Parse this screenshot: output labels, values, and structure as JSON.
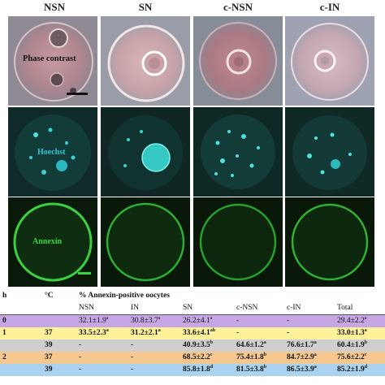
{
  "figure": {
    "columns": [
      "NSN",
      "SN",
      "c-NSN",
      "c-IN"
    ],
    "row_labels": {
      "phase": "Phase contrast",
      "hoechst": "Hoechst",
      "annexin": "Annexin"
    },
    "colors": {
      "phase_bg": "#8f8a93",
      "hoechst_bg": "#0f2a28",
      "hoechst_label": "#2fc4d8",
      "annexin_bg": "#0a1a0a",
      "annexin_label": "#3ad640"
    }
  },
  "table": {
    "header": {
      "h": "h",
      "temp": "°C",
      "group": "% Annexin-positive oocytes",
      "cols": [
        "NSN",
        "IN",
        "SN",
        "c-NSN",
        "c-IN",
        "Total"
      ]
    },
    "rows": [
      {
        "h": "0",
        "temp": "",
        "color": "purple",
        "cells": [
          {
            "v": "32.1±1.9",
            "s": "a"
          },
          {
            "v": "30.8±3.7",
            "s": "a"
          },
          {
            "v": "26.2±4.1",
            "s": "a"
          },
          {
            "v": "-",
            "s": ""
          },
          {
            "v": "-",
            "s": ""
          },
          {
            "v": "29.4±2.2",
            "s": "a"
          }
        ]
      },
      {
        "h": "1",
        "temp": "37",
        "color": "yellow",
        "cells": [
          {
            "v": "33.5±2.3",
            "s": "a"
          },
          {
            "v": "31.2±2.1",
            "s": "a"
          },
          {
            "v": "33.6±4.1",
            "s": "ab"
          },
          {
            "v": "-",
            "s": ""
          },
          {
            "v": "-",
            "s": ""
          },
          {
            "v": "33.0±1.3",
            "s": "a"
          }
        ]
      },
      {
        "h": "",
        "temp": "39",
        "color": "gray",
        "cells": [
          {
            "v": "-",
            "s": ""
          },
          {
            "v": "-",
            "s": ""
          },
          {
            "v": "40.9±3.5",
            "s": "b"
          },
          {
            "v": "64.6±1.2",
            "s": "a"
          },
          {
            "v": "76.6±1.7",
            "s": "a"
          },
          {
            "v": "60.4±1.9",
            "s": "b"
          }
        ]
      },
      {
        "h": "2",
        "temp": "37",
        "color": "orange",
        "cells": [
          {
            "v": "-",
            "s": ""
          },
          {
            "v": "-",
            "s": ""
          },
          {
            "v": "68.5±2.2",
            "s": "c"
          },
          {
            "v": "75.4±1.8",
            "s": "b"
          },
          {
            "v": "84.7±2.9",
            "s": "a"
          },
          {
            "v": "75.6±2.2",
            "s": "c"
          }
        ]
      },
      {
        "h": "",
        "temp": "39",
        "color": "blue",
        "cells": [
          {
            "v": "-",
            "s": ""
          },
          {
            "v": "-",
            "s": ""
          },
          {
            "v": "85.8±1.8",
            "s": "d"
          },
          {
            "v": "81.5±3.8",
            "s": "b"
          },
          {
            "v": "86.5±3.9",
            "s": "a"
          },
          {
            "v": "85.2±1.9",
            "s": "d"
          }
        ]
      }
    ]
  }
}
